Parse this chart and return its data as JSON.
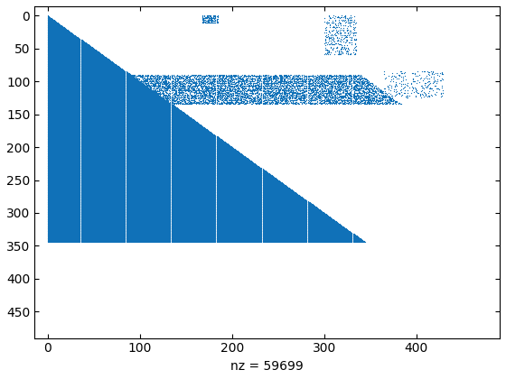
{
  "nz": 59699,
  "n": 477,
  "n_dense": 345,
  "xlabel": "nz = 59699",
  "marker_color": "#1071b8",
  "xlim": [
    -14.31,
    490.31
  ],
  "ylim": [
    490.31,
    -14.31
  ],
  "xticks": [
    0,
    100,
    200,
    300,
    400
  ],
  "yticks": [
    0,
    50,
    100,
    150,
    200,
    250,
    300,
    350,
    400,
    450
  ],
  "figsize": [
    5.6,
    4.2
  ],
  "dpi": 100
}
